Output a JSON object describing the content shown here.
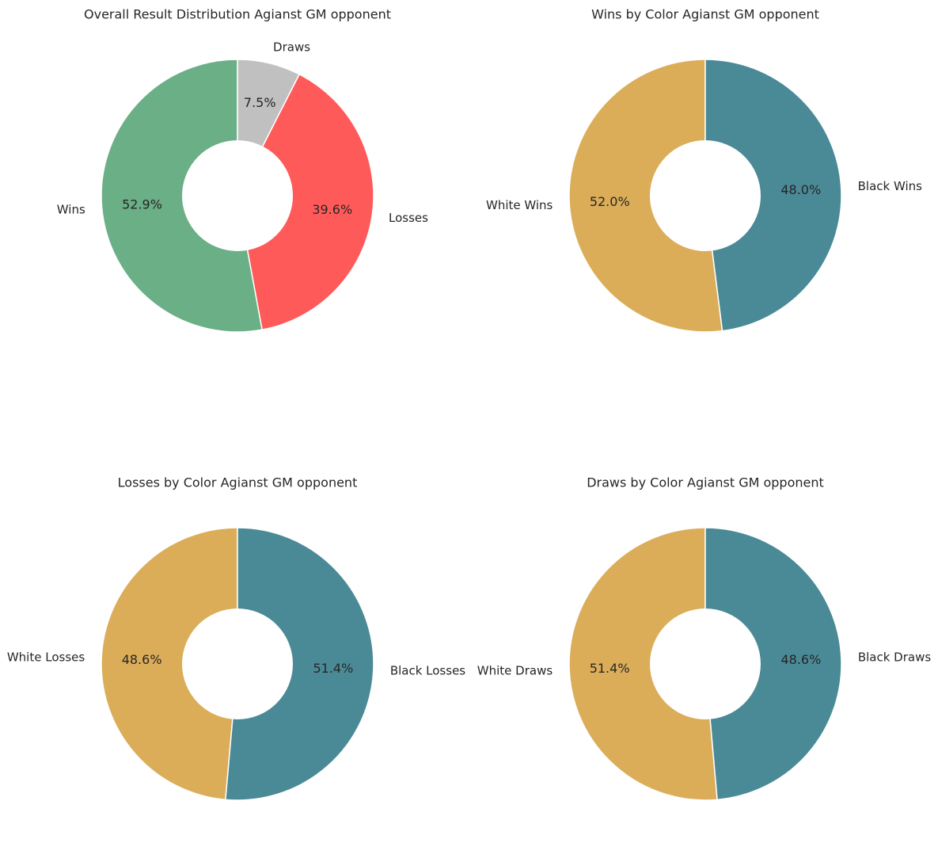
{
  "chart_data": [
    {
      "type": "pie",
      "title": "Overall Result Distribution Agianst GM opponent",
      "categories": [
        "Wins",
        "Losses",
        "Draws"
      ],
      "values": [
        52.9,
        39.6,
        7.5
      ],
      "percent_labels": [
        "52.9%",
        "39.6%",
        "7.5%"
      ],
      "colors": [
        "#6aaf86",
        "#ff5a5a",
        "#c0c0c0"
      ],
      "donut": true
    },
    {
      "type": "pie",
      "title": "Wins by Color Agianst GM opponent",
      "categories": [
        "White Wins",
        "Black Wins"
      ],
      "values": [
        52.0,
        48.0
      ],
      "percent_labels": [
        "52.0%",
        "48.0%"
      ],
      "colors": [
        "#dbad59",
        "#4a8a96"
      ],
      "donut": true
    },
    {
      "type": "pie",
      "title": "Losses by Color Agianst GM opponent",
      "categories": [
        "White Losses",
        "Black Losses"
      ],
      "values": [
        48.6,
        51.4
      ],
      "percent_labels": [
        "48.6%",
        "51.4%"
      ],
      "colors": [
        "#dbad59",
        "#4a8a96"
      ],
      "donut": true
    },
    {
      "type": "pie",
      "title": "Draws by Color Agianst GM opponent",
      "categories": [
        "White Draws",
        "Black Draws"
      ],
      "values": [
        51.4,
        48.6
      ],
      "percent_labels": [
        "51.4%",
        "48.6%"
      ],
      "colors": [
        "#dbad59",
        "#4a8a96"
      ],
      "donut": true
    }
  ]
}
